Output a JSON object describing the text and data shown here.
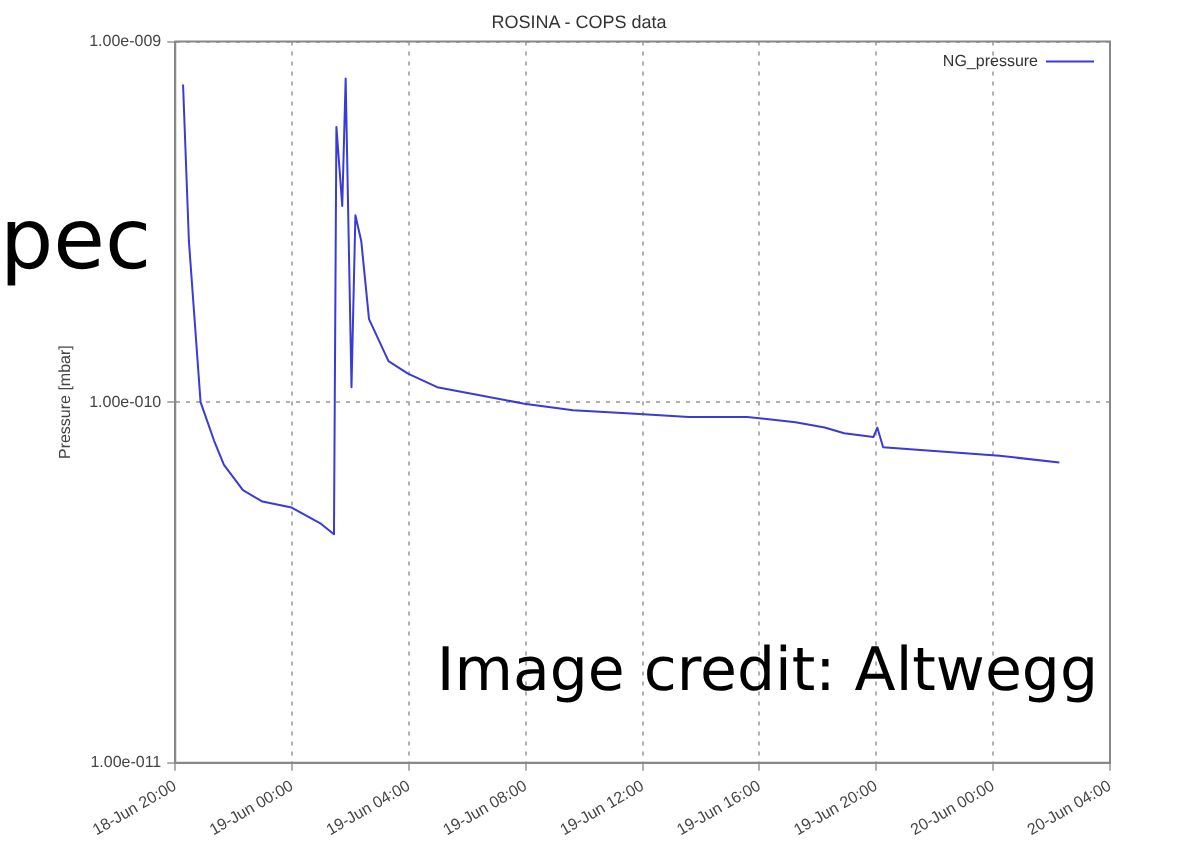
{
  "chart_data": {
    "type": "line",
    "title": "ROSINA - COPS data",
    "ylabel": "Pressure [mbar]",
    "x": [
      "--06-18T20:16",
      "--06-18T20:28",
      "--06-18T20:52",
      "--06-18T21:20",
      "--06-18T21:40",
      "--06-18T22:19",
      "--06-18T22:59",
      "--06-18T23:59",
      "--06-19T00:59",
      "--06-19T01:26",
      "--06-19T01:31",
      "--06-19T01:43",
      "--06-19T01:50",
      "--06-19T02:02",
      "--06-19T02:10",
      "--06-19T02:22",
      "--06-19T02:38",
      "--06-19T03:18",
      "--06-19T03:58",
      "--06-19T04:58",
      "--06-19T06:17",
      "--06-19T07:57",
      "--06-19T09:37",
      "--06-19T11:36",
      "--06-19T13:35",
      "--06-19T15:35",
      "--06-19T17:14",
      "--06-19T18:14",
      "--06-19T18:54",
      "--06-19T19:54",
      "--06-19T20:02",
      "--06-19T20:14",
      "--06-19T22:13",
      "--06-20T00:13",
      "--06-20T02:16"
    ],
    "series": [
      {
        "name": "NG_pressure",
        "color": "#3a3ad8",
        "values": [
          7.6e-10,
          2.8e-10,
          1e-10,
          7.8e-11,
          6.7e-11,
          5.7e-11,
          5.3e-11,
          5.1e-11,
          4.6e-11,
          4.3e-11,
          5.8e-10,
          3.5e-10,
          7.9e-10,
          1.1e-10,
          3.3e-10,
          2.8e-10,
          1.7e-10,
          1.3e-10,
          1.2e-10,
          1.1e-10,
          1.05e-10,
          9.9e-11,
          9.5e-11,
          9.3e-11,
          9.1e-11,
          9.1e-11,
          8.8e-11,
          8.5e-11,
          8.2e-11,
          8e-11,
          8.5e-11,
          7.5e-11,
          7.3e-11,
          7.1e-11,
          6.8e-11
        ]
      }
    ],
    "xlim": [
      "--06-18T20:00",
      "--06-20T04:00"
    ],
    "xticks": [
      {
        "value": "--06-18T20:00",
        "label": "18-Jun 20:00"
      },
      {
        "value": "--06-19T00:00",
        "label": "19-Jun 00:00"
      },
      {
        "value": "--06-19T04:00",
        "label": "19-Jun 04:00"
      },
      {
        "value": "--06-19T08:00",
        "label": "19-Jun 08:00"
      },
      {
        "value": "--06-19T12:00",
        "label": "19-Jun 12:00"
      },
      {
        "value": "--06-19T16:00",
        "label": "19-Jun 16:00"
      },
      {
        "value": "--06-19T20:00",
        "label": "19-Jun 20:00"
      },
      {
        "value": "--06-20T00:00",
        "label": "20-Jun 00:00"
      },
      {
        "value": "--06-20T04:00",
        "label": "20-Jun 04:00"
      }
    ],
    "ylim": [
      1e-11,
      1e-09
    ],
    "yticks": [
      {
        "value": 1e-11,
        "label": "1.00e-011"
      },
      {
        "value": 1e-10,
        "label": "1.00e-010"
      },
      {
        "value": 1e-09,
        "label": "1.00e-009"
      }
    ],
    "log": "y",
    "grid": true,
    "legend": "top right",
    "marker": "none",
    "line_style": "solid",
    "annotations": [
      "pec",
      "Image credit: Altwegg"
    ]
  }
}
